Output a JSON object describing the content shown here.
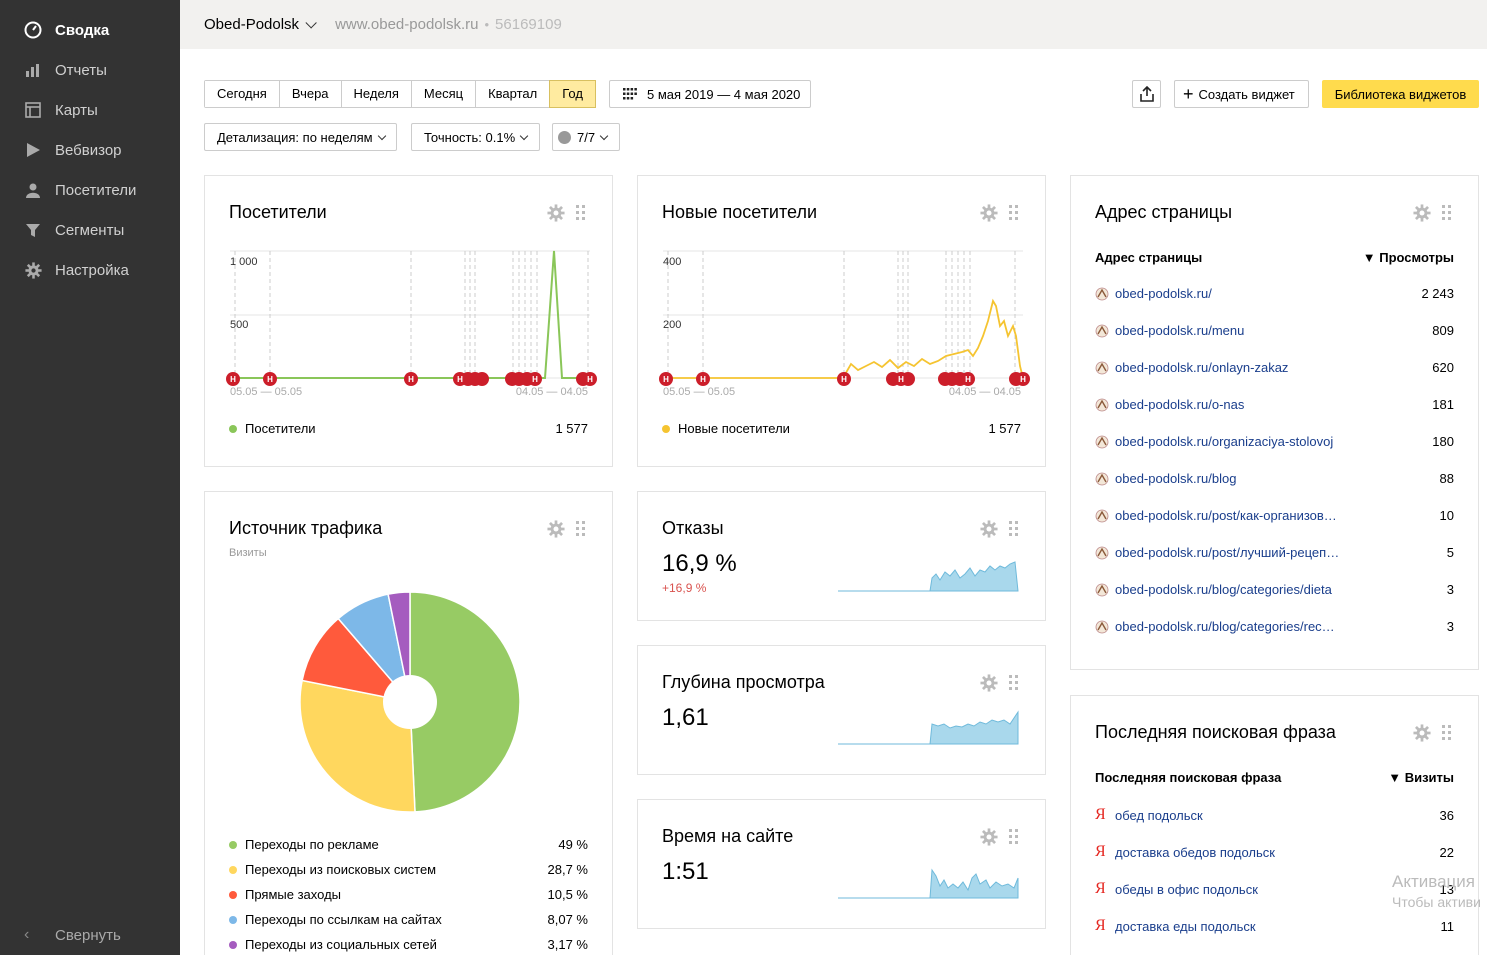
{
  "sidebar": {
    "items": [
      {
        "label": "Сводка",
        "icon": "dashboard-icon"
      },
      {
        "label": "Отчеты",
        "icon": "bar-chart-icon"
      },
      {
        "label": "Карты",
        "icon": "map-icon"
      },
      {
        "label": "Вебвизор",
        "icon": "play-icon"
      },
      {
        "label": "Посетители",
        "icon": "user-icon"
      },
      {
        "label": "Сегменты",
        "icon": "filter-icon"
      },
      {
        "label": "Настройка",
        "icon": "gear-icon"
      }
    ],
    "collapse_label": "Свернуть"
  },
  "header": {
    "site_name": "Obed-Podolsk",
    "site_url": "www.obed-podolsk.ru",
    "separator": "•",
    "counter_id": "56169109"
  },
  "toolbar": {
    "periods": [
      "Сегодня",
      "Вчера",
      "Неделя",
      "Месяц",
      "Квартал",
      "Год"
    ],
    "active_period": "Год",
    "date_range": "5 мая 2019 — 4 мая 2020",
    "create_widget": "Создать виджет",
    "library": "Библиотека виджетов",
    "detail": "Детализация: по неделям",
    "accuracy": "Точность: 0.1%",
    "segments": "7/7"
  },
  "widgets": {
    "visitors": {
      "title": "Посетители",
      "y_ticks": [
        "1 000",
        "500"
      ],
      "x_left": "05.05 — 05.05",
      "x_right": "04.05 — 04.05",
      "legend": "Посетители",
      "total": "1 577",
      "color": "#8ac659"
    },
    "new_visitors": {
      "title": "Новые посетители",
      "y_ticks": [
        "400",
        "200"
      ],
      "x_left": "05.05 — 05.05",
      "x_right": "04.05 — 04.05",
      "legend": "Новые посетители",
      "total": "1 577",
      "color": "#f5c431"
    },
    "traffic": {
      "title": "Источник трафика",
      "subtitle": "Визиты",
      "items": [
        {
          "label": "Переходы по рекламе",
          "value": "49 %",
          "color": "#97cb64"
        },
        {
          "label": "Переходы из поисковых систем",
          "value": "28,7 %",
          "color": "#ffd75e"
        },
        {
          "label": "Прямые заходы",
          "value": "10,5 %",
          "color": "#ff5a3c"
        },
        {
          "label": "Переходы по ссылкам на сайтах",
          "value": "8,07 %",
          "color": "#7db8e8"
        },
        {
          "label": "Переходы из социальных сетей",
          "value": "3,17 %",
          "color": "#a55cbf"
        }
      ]
    },
    "bounce": {
      "title": "Отказы",
      "value": "16,9 %",
      "delta": "+16,9 %"
    },
    "depth": {
      "title": "Глубина просмотра",
      "value": "1,61"
    },
    "time": {
      "title": "Время на сайте",
      "value": "1:51"
    },
    "pages": {
      "title": "Адрес страницы",
      "col1": "Адрес страницы",
      "col2": "▼ Просмотры",
      "rows": [
        {
          "url": "obed-podolsk.ru/",
          "value": "2 243"
        },
        {
          "url": "obed-podolsk.ru/menu",
          "value": "809"
        },
        {
          "url": "obed-podolsk.ru/onlayn-zakaz",
          "value": "620"
        },
        {
          "url": "obed-podolsk.ru/o-nas",
          "value": "181"
        },
        {
          "url": "obed-podolsk.ru/organizaciya-stolovoj",
          "value": "180"
        },
        {
          "url": "obed-podolsk.ru/blog",
          "value": "88"
        },
        {
          "url": "obed-podolsk.ru/post/как-организов…",
          "value": "10"
        },
        {
          "url": "obed-podolsk.ru/post/лучший-рецеп…",
          "value": "5"
        },
        {
          "url": "obed-podolsk.ru/blog/categories/dieta",
          "value": "3"
        },
        {
          "url": "obed-podolsk.ru/blog/categories/rec…",
          "value": "3"
        }
      ]
    },
    "search": {
      "title": "Последняя поисковая фраза",
      "col1": "Последняя поисковая фраза",
      "col2": "▼ Визиты",
      "rows": [
        {
          "phrase": "обед подольск",
          "value": "36"
        },
        {
          "phrase": "доставка обедов подольск",
          "value": "22"
        },
        {
          "phrase": "обеды в офис подольск",
          "value": "13"
        },
        {
          "phrase": "доставка еды подольск",
          "value": "11"
        }
      ]
    }
  },
  "watermark": {
    "line1": "Активация",
    "line2": "Чтобы активи"
  }
}
